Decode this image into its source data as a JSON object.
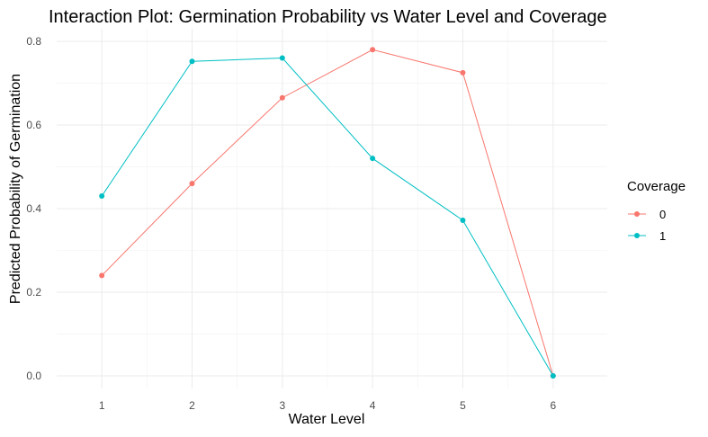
{
  "chart_data": {
    "type": "line",
    "title": "Interaction Plot: Germination Probability vs Water Level and Coverage",
    "xlabel": "Water Level",
    "ylabel": "Predicted Probability of Germination",
    "x": [
      1,
      2,
      3,
      4,
      5,
      6
    ],
    "xlim": [
      0.5,
      6.6
    ],
    "ylim": [
      -0.03,
      0.83
    ],
    "yticks": [
      0.0,
      0.2,
      0.4,
      0.6,
      0.8
    ],
    "ytick_labels": [
      "0.0",
      "0.2",
      "0.4",
      "0.6",
      "0.8"
    ],
    "xtick_labels": [
      "1",
      "2",
      "3",
      "4",
      "5",
      "6"
    ],
    "grid": true,
    "legend": {
      "title": "Coverage",
      "placement": "right"
    },
    "series": [
      {
        "name": "0",
        "color": "#F8766D",
        "values": [
          0.24,
          0.46,
          0.665,
          0.78,
          0.725,
          0.0
        ]
      },
      {
        "name": "1",
        "color": "#00BFC4",
        "values": [
          0.43,
          0.752,
          0.76,
          0.52,
          0.372,
          0.0
        ]
      }
    ]
  }
}
